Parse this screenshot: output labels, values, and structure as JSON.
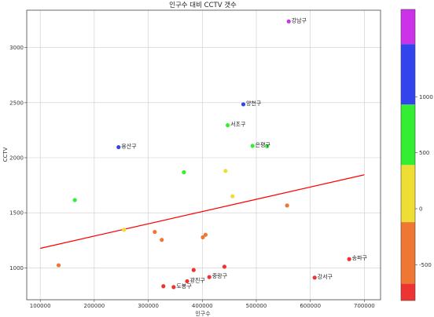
{
  "chart_data": {
    "type": "scatter",
    "title": "인구수 대비 CCTV 갯수",
    "xlabel": "인구수",
    "ylabel": "CCTV",
    "xlim": [
      75000,
      730000
    ],
    "ylim": [
      710000,
      3340
    ],
    "xticks": [
      100000,
      200000,
      300000,
      400000,
      500000,
      600000,
      700000
    ],
    "yticks": [
      1000,
      1500,
      2000,
      2500,
      3000
    ],
    "grid": true,
    "points": [
      {
        "x": 560000,
        "y": 3238,
        "label": "강남구",
        "c": 1618
      },
      {
        "x": 476000,
        "y": 2485,
        "label": "양천구",
        "c": 1100
      },
      {
        "x": 447000,
        "y": 2295,
        "label": "서초구",
        "c": 650
      },
      {
        "x": 245000,
        "y": 2096,
        "label": "용산구",
        "c": 1050
      },
      {
        "x": 493000,
        "y": 2108,
        "label": "은평구",
        "c": 620
      },
      {
        "x": 520000,
        "y": 2105,
        "label": "",
        "c": 600
      },
      {
        "x": 366000,
        "y": 1868,
        "label": "",
        "c": 560
      },
      {
        "x": 164000,
        "y": 1615,
        "label": "",
        "c": 560
      },
      {
        "x": 443000,
        "y": 1880,
        "label": "",
        "c": 230
      },
      {
        "x": 456000,
        "y": 1650,
        "label": "",
        "c": 150
      },
      {
        "x": 255000,
        "y": 1346,
        "label": "",
        "c": -40
      },
      {
        "x": 557000,
        "y": 1566,
        "label": "",
        "c": -180
      },
      {
        "x": 312000,
        "y": 1326,
        "label": "",
        "c": -300
      },
      {
        "x": 406000,
        "y": 1300,
        "label": "",
        "c": -280
      },
      {
        "x": 401000,
        "y": 1277,
        "label": "",
        "c": -300
      },
      {
        "x": 325000,
        "y": 1254,
        "label": "",
        "c": -300
      },
      {
        "x": 134000,
        "y": 1023,
        "label": "",
        "c": -360
      },
      {
        "x": 672000,
        "y": 1079,
        "label": "송파구",
        "c": -690
      },
      {
        "x": 608000,
        "y": 911,
        "label": "강서구",
        "c": -760
      },
      {
        "x": 441000,
        "y": 1010,
        "label": "",
        "c": -680
      },
      {
        "x": 384000,
        "y": 980,
        "label": "",
        "c": -690
      },
      {
        "x": 413000,
        "y": 916,
        "label": "중랑구",
        "c": -700
      },
      {
        "x": 372000,
        "y": 878,
        "label": "광진구",
        "c": -720
      },
      {
        "x": 347000,
        "y": 825,
        "label": "도봉구",
        "c": -720
      },
      {
        "x": 328000,
        "y": 833,
        "label": "",
        "c": -730
      }
    ],
    "trend": {
      "x1": 100000,
      "y1": 1177,
      "x2": 700000,
      "y2": 1845,
      "color": "#ff0000"
    },
    "colorbar": {
      "ticks": [
        1000,
        500,
        0,
        -500
      ],
      "range": [
        -820,
        1780
      ],
      "bands": [
        {
          "from": 1470,
          "to": 1780,
          "color": "#cc33e8"
        },
        {
          "from": 930,
          "to": 1470,
          "color": "#3344ee"
        },
        {
          "from": 390,
          "to": 930,
          "color": "#33ee33"
        },
        {
          "from": -120,
          "to": 390,
          "color": "#eedd33"
        },
        {
          "from": -670,
          "to": -120,
          "color": "#ee7733"
        },
        {
          "from": -820,
          "to": -670,
          "color": "#ee3333"
        }
      ]
    }
  }
}
